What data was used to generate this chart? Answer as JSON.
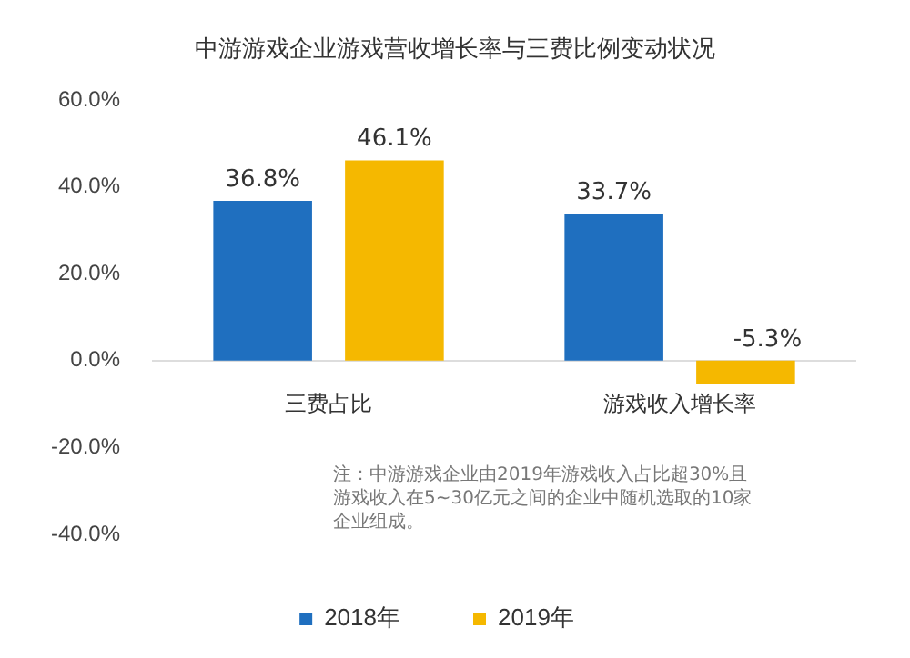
{
  "chart_data": {
    "type": "bar",
    "title": "中游游戏企业游戏营收增长率与三费比例变动状况",
    "categories": [
      "三费占比",
      "游戏收入增长率"
    ],
    "series": [
      {
        "name": "2018年",
        "color": "#1f6fbf",
        "values": [
          36.8,
          33.7
        ],
        "value_labels": [
          "36.8%",
          "33.7%"
        ]
      },
      {
        "name": "2019年",
        "color": "#f5b800",
        "values": [
          46.1,
          -5.3
        ],
        "value_labels": [
          "46.1%",
          "-5.3%"
        ]
      }
    ],
    "ylim": [
      -40,
      60
    ],
    "yticks": [
      {
        "value": -40,
        "label": "-40.0%"
      },
      {
        "value": -20,
        "label": "-20.0%"
      },
      {
        "value": 0,
        "label": "0.0%"
      },
      {
        "value": 20,
        "label": "20.0%"
      },
      {
        "value": 40,
        "label": "40.0%"
      },
      {
        "value": 60,
        "label": "60.0%"
      }
    ],
    "grid": false,
    "legend": "bottom",
    "annotations": [
      "注：中游游戏企业由2019年游戏收入占比超30%且游戏收入在5~30亿元之间的企业中随机选取的10家企业组成。"
    ]
  }
}
